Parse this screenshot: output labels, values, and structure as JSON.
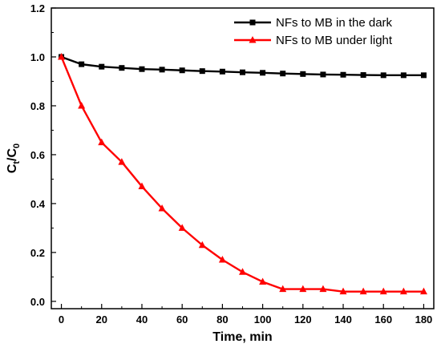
{
  "chart_data": {
    "type": "line",
    "title": "",
    "xlabel": "Time, min",
    "ylabel_main": "C",
    "ylabel_sub1": "t",
    "ylabel_slash": "/C",
    "ylabel_sub2": "0",
    "xlim": [
      -5,
      185
    ],
    "ylim": [
      -0.03,
      1.2
    ],
    "xticks": [
      0,
      20,
      40,
      60,
      80,
      100,
      120,
      140,
      160,
      180
    ],
    "xtick_labels": [
      "0",
      "20",
      "40",
      "60",
      "80",
      "100",
      "120",
      "140",
      "160",
      "180"
    ],
    "yticks": [
      0.0,
      0.2,
      0.4,
      0.6,
      0.8,
      1.0,
      1.2
    ],
    "ytick_labels": [
      "0.0",
      "0.2",
      "0.4",
      "0.6",
      "0.8",
      "1.0",
      "1.2"
    ],
    "grid": false,
    "legend_position": "top-right",
    "x": [
      0,
      10,
      20,
      30,
      40,
      50,
      60,
      70,
      80,
      90,
      100,
      110,
      120,
      130,
      140,
      150,
      160,
      170,
      180
    ],
    "series": [
      {
        "name": "NFs to MB in the dark",
        "color": "#000000",
        "marker": "square",
        "values": [
          1.0,
          0.97,
          0.96,
          0.955,
          0.95,
          0.948,
          0.945,
          0.942,
          0.94,
          0.937,
          0.935,
          0.932,
          0.93,
          0.928,
          0.927,
          0.926,
          0.925,
          0.925,
          0.925
        ]
      },
      {
        "name": "NFs to MB under light",
        "color": "#ff0000",
        "marker": "triangle",
        "values": [
          1.0,
          0.8,
          0.65,
          0.57,
          0.47,
          0.38,
          0.3,
          0.23,
          0.17,
          0.12,
          0.08,
          0.05,
          0.05,
          0.05,
          0.04,
          0.04,
          0.04,
          0.04,
          0.04
        ]
      }
    ]
  }
}
